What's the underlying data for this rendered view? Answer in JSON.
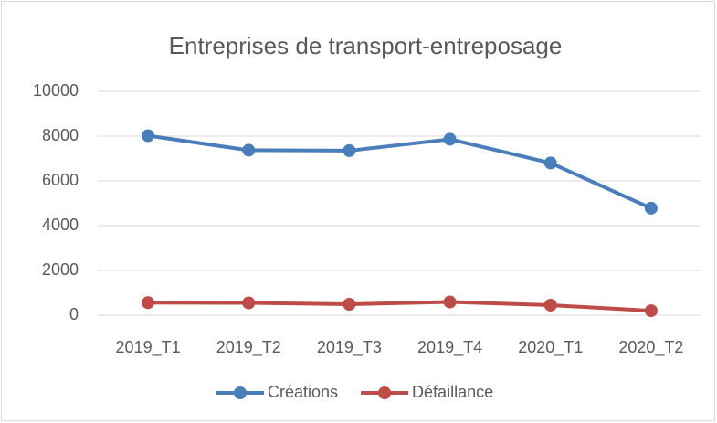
{
  "chart_data": {
    "type": "line",
    "title": "Entreprises de transport-entreposage",
    "categories": [
      "2019_T1",
      "2019_T2",
      "2019_T3",
      "2019_T4",
      "2020_T1",
      "2020_T2"
    ],
    "series": [
      {
        "name": "Créations",
        "color": "#4a7ebb",
        "values": [
          8020,
          7370,
          7350,
          7860,
          6800,
          4780
        ]
      },
      {
        "name": "Défaillance",
        "color": "#be4b48",
        "values": [
          560,
          550,
          490,
          590,
          450,
          200
        ]
      }
    ],
    "ylim": [
      0,
      10000
    ],
    "yticks": [
      0,
      2000,
      4000,
      6000,
      8000,
      10000
    ],
    "grid": true,
    "legend": "bottom"
  }
}
